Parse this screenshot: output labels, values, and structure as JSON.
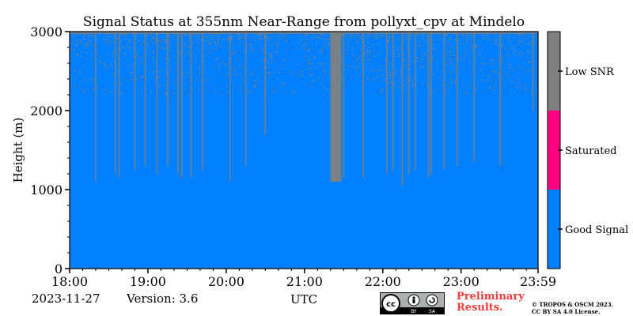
{
  "chart_data": {
    "type": "heatmap",
    "title": "Signal Status at 355nm Near-Range from pollyxt_cpv at Mindelo",
    "xlabel": "UTC",
    "ylabel": "Height (m)",
    "x_range": [
      "18:00",
      "23:59"
    ],
    "ylim": [
      0,
      3000
    ],
    "x_ticks": [
      "18:00",
      "19:00",
      "20:00",
      "21:00",
      "22:00",
      "23:00",
      "23:59"
    ],
    "y_ticks": [
      0,
      1000,
      2000,
      3000
    ],
    "colorbar": {
      "categories": [
        "Good Signal",
        "Saturated",
        "Low SNR"
      ],
      "colors": [
        "#0080ff",
        "#ff0080",
        "#808080"
      ]
    },
    "low_snr_onset_height_m": 2800,
    "low_snr_streaks": [
      {
        "time": "18:20",
        "bottom_m": 1100
      },
      {
        "time": "18:35",
        "bottom_m": 1200
      },
      {
        "time": "18:38",
        "bottom_m": 1150
      },
      {
        "time": "18:50",
        "bottom_m": 1250
      },
      {
        "time": "18:58",
        "bottom_m": 1300
      },
      {
        "time": "19:07",
        "bottom_m": 1200
      },
      {
        "time": "19:15",
        "bottom_m": 1300
      },
      {
        "time": "19:23",
        "bottom_m": 1200
      },
      {
        "time": "19:26",
        "bottom_m": 1150
      },
      {
        "time": "19:33",
        "bottom_m": 1150
      },
      {
        "time": "19:42",
        "bottom_m": 1250
      },
      {
        "time": "20:03",
        "bottom_m": 1100
      },
      {
        "time": "20:15",
        "bottom_m": 1300
      },
      {
        "time": "20:30",
        "bottom_m": 1700
      },
      {
        "time": "21:24",
        "bottom_m": 1100,
        "wide": true
      },
      {
        "time": "21:30",
        "bottom_m": 1150
      },
      {
        "time": "21:45",
        "bottom_m": 1150
      },
      {
        "time": "22:03",
        "bottom_m": 1200
      },
      {
        "time": "22:08",
        "bottom_m": 1250
      },
      {
        "time": "22:15",
        "bottom_m": 1050
      },
      {
        "time": "22:20",
        "bottom_m": 1200
      },
      {
        "time": "22:25",
        "bottom_m": 1250
      },
      {
        "time": "22:35",
        "bottom_m": 1150
      },
      {
        "time": "22:37",
        "bottom_m": 1200
      },
      {
        "time": "22:47",
        "bottom_m": 1250
      },
      {
        "time": "22:57",
        "bottom_m": 1300
      },
      {
        "time": "23:10",
        "bottom_m": 1350
      },
      {
        "time": "23:30",
        "bottom_m": 1300
      },
      {
        "time": "23:55",
        "bottom_m": 2000
      }
    ]
  },
  "footer": {
    "date": "2023-11-27",
    "version": "Version: 3.6",
    "preliminary_line1": "Preliminary",
    "preliminary_line2": "Results.",
    "license_line1": "© TROPOS & OSCM 2023.",
    "license_line2": "CC BY SA 4.0 License.",
    "cc_logo": {
      "cc": "cc",
      "by": "BY",
      "sa": "SA"
    }
  }
}
